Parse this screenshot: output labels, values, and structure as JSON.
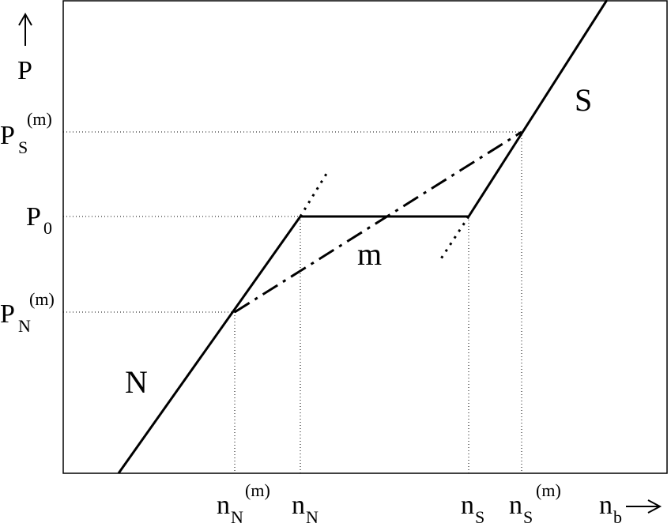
{
  "axis_labels": {
    "y": "P",
    "x": {
      "base": "n",
      "sub": "b"
    }
  },
  "y_labels": [
    {
      "base": "P",
      "sub": "S",
      "sup": "(m)"
    },
    {
      "base": "P",
      "sub": "0"
    },
    {
      "base": "P",
      "sub": "N",
      "sup": "(m)"
    }
  ],
  "x_labels": [
    {
      "base": "n",
      "sub": "N",
      "sup": "(m)"
    },
    {
      "base": "n",
      "sub": "N"
    },
    {
      "base": "n",
      "sub": "S"
    },
    {
      "base": "n",
      "sub": "S",
      "sup": "(m)"
    }
  ],
  "region_labels": [
    "N",
    "m",
    "S"
  ]
}
